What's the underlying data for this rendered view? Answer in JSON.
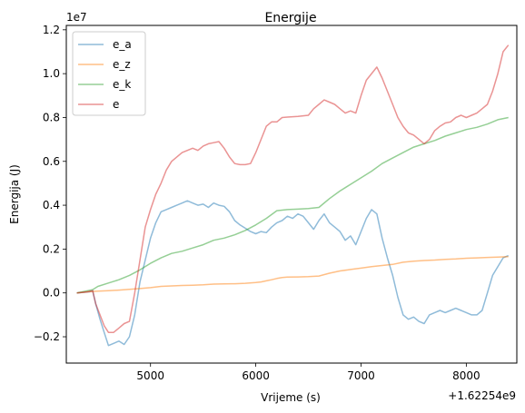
{
  "chart_data": {
    "type": "line",
    "title": "Energije",
    "xlabel": "Vrijeme (s)",
    "ylabel": "Energija (J)",
    "x_offset_label": "+1.62254e9",
    "y_scale_label": "1e7",
    "xlim": [
      4200,
      8480
    ],
    "ylim": [
      -0.32,
      1.22
    ],
    "x_ticks": [
      5000,
      6000,
      7000,
      8000
    ],
    "x_tick_labels": [
      "5000",
      "6000",
      "7000",
      "8000"
    ],
    "y_ticks": [
      -0.2,
      0.0,
      0.2,
      0.4,
      0.6,
      0.8,
      1.0,
      1.2
    ],
    "y_tick_labels": [
      "−0.2",
      "0.0",
      "0.2",
      "0.4",
      "0.6",
      "0.8",
      "1.0",
      "1.2"
    ],
    "legend_position": "upper-left",
    "grid": false,
    "series": [
      {
        "name": "e_a",
        "color": "#1f77b4",
        "points": [
          [
            4300,
            0.0
          ],
          [
            4420,
            0.005
          ],
          [
            4450,
            0.01
          ],
          [
            4480,
            -0.05
          ],
          [
            4520,
            -0.12
          ],
          [
            4560,
            -0.18
          ],
          [
            4600,
            -0.24
          ],
          [
            4650,
            -0.23
          ],
          [
            4700,
            -0.22
          ],
          [
            4750,
            -0.235
          ],
          [
            4800,
            -0.2
          ],
          [
            4850,
            -0.1
          ],
          [
            4900,
            0.05
          ],
          [
            4950,
            0.15
          ],
          [
            5000,
            0.25
          ],
          [
            5050,
            0.32
          ],
          [
            5100,
            0.37
          ],
          [
            5150,
            0.38
          ],
          [
            5200,
            0.39
          ],
          [
            5250,
            0.4
          ],
          [
            5300,
            0.41
          ],
          [
            5350,
            0.42
          ],
          [
            5400,
            0.41
          ],
          [
            5450,
            0.4
          ],
          [
            5500,
            0.405
          ],
          [
            5550,
            0.39
          ],
          [
            5600,
            0.41
          ],
          [
            5650,
            0.4
          ],
          [
            5700,
            0.395
          ],
          [
            5750,
            0.37
          ],
          [
            5800,
            0.33
          ],
          [
            5850,
            0.31
          ],
          [
            5900,
            0.295
          ],
          [
            5950,
            0.28
          ],
          [
            6000,
            0.27
          ],
          [
            6050,
            0.28
          ],
          [
            6100,
            0.275
          ],
          [
            6150,
            0.3
          ],
          [
            6200,
            0.32
          ],
          [
            6250,
            0.33
          ],
          [
            6300,
            0.35
          ],
          [
            6350,
            0.34
          ],
          [
            6400,
            0.36
          ],
          [
            6450,
            0.35
          ],
          [
            6500,
            0.32
          ],
          [
            6550,
            0.29
          ],
          [
            6600,
            0.33
          ],
          [
            6650,
            0.36
          ],
          [
            6700,
            0.32
          ],
          [
            6750,
            0.3
          ],
          [
            6800,
            0.28
          ],
          [
            6850,
            0.24
          ],
          [
            6900,
            0.26
          ],
          [
            6950,
            0.22
          ],
          [
            7000,
            0.28
          ],
          [
            7050,
            0.34
          ],
          [
            7100,
            0.38
          ],
          [
            7150,
            0.36
          ],
          [
            7200,
            0.25
          ],
          [
            7250,
            0.16
          ],
          [
            7300,
            0.08
          ],
          [
            7350,
            -0.02
          ],
          [
            7400,
            -0.1
          ],
          [
            7450,
            -0.12
          ],
          [
            7500,
            -0.11
          ],
          [
            7550,
            -0.13
          ],
          [
            7600,
            -0.14
          ],
          [
            7650,
            -0.1
          ],
          [
            7700,
            -0.09
          ],
          [
            7750,
            -0.08
          ],
          [
            7800,
            -0.09
          ],
          [
            7850,
            -0.08
          ],
          [
            7900,
            -0.07
          ],
          [
            7950,
            -0.08
          ],
          [
            8000,
            -0.09
          ],
          [
            8050,
            -0.1
          ],
          [
            8100,
            -0.1
          ],
          [
            8150,
            -0.08
          ],
          [
            8200,
            0.0
          ],
          [
            8250,
            0.08
          ],
          [
            8300,
            0.12
          ],
          [
            8350,
            0.16
          ],
          [
            8400,
            0.17
          ]
        ]
      },
      {
        "name": "e_z",
        "color": "#ff7f0e",
        "points": [
          [
            4300,
            0.0
          ],
          [
            4400,
            0.005
          ],
          [
            4500,
            0.008
          ],
          [
            4600,
            0.01
          ],
          [
            4700,
            0.013
          ],
          [
            4800,
            0.016
          ],
          [
            4900,
            0.02
          ],
          [
            5000,
            0.024
          ],
          [
            5100,
            0.03
          ],
          [
            5200,
            0.032
          ],
          [
            5300,
            0.034
          ],
          [
            5400,
            0.035
          ],
          [
            5500,
            0.037
          ],
          [
            5600,
            0.04
          ],
          [
            5700,
            0.041
          ],
          [
            5800,
            0.042
          ],
          [
            5900,
            0.044
          ],
          [
            6000,
            0.047
          ],
          [
            6050,
            0.05
          ],
          [
            6100,
            0.055
          ],
          [
            6150,
            0.06
          ],
          [
            6200,
            0.066
          ],
          [
            6250,
            0.07
          ],
          [
            6300,
            0.072
          ],
          [
            6400,
            0.073
          ],
          [
            6500,
            0.074
          ],
          [
            6600,
            0.077
          ],
          [
            6700,
            0.09
          ],
          [
            6800,
            0.1
          ],
          [
            6900,
            0.107
          ],
          [
            7000,
            0.113
          ],
          [
            7100,
            0.12
          ],
          [
            7200,
            0.125
          ],
          [
            7300,
            0.13
          ],
          [
            7400,
            0.14
          ],
          [
            7500,
            0.145
          ],
          [
            7600,
            0.148
          ],
          [
            7700,
            0.15
          ],
          [
            7800,
            0.153
          ],
          [
            7900,
            0.155
          ],
          [
            8000,
            0.158
          ],
          [
            8100,
            0.16
          ],
          [
            8200,
            0.162
          ],
          [
            8300,
            0.163
          ],
          [
            8400,
            0.165
          ]
        ]
      },
      {
        "name": "e_k",
        "color": "#2ca02c",
        "points": [
          [
            4300,
            0.0
          ],
          [
            4400,
            0.01
          ],
          [
            4450,
            0.015
          ],
          [
            4500,
            0.03
          ],
          [
            4600,
            0.045
          ],
          [
            4700,
            0.06
          ],
          [
            4800,
            0.08
          ],
          [
            4900,
            0.105
          ],
          [
            5000,
            0.135
          ],
          [
            5100,
            0.16
          ],
          [
            5200,
            0.18
          ],
          [
            5300,
            0.19
          ],
          [
            5400,
            0.205
          ],
          [
            5500,
            0.22
          ],
          [
            5600,
            0.24
          ],
          [
            5700,
            0.25
          ],
          [
            5800,
            0.265
          ],
          [
            5900,
            0.285
          ],
          [
            6000,
            0.31
          ],
          [
            6100,
            0.34
          ],
          [
            6200,
            0.375
          ],
          [
            6300,
            0.38
          ],
          [
            6400,
            0.382
          ],
          [
            6500,
            0.385
          ],
          [
            6600,
            0.39
          ],
          [
            6700,
            0.43
          ],
          [
            6800,
            0.465
          ],
          [
            6900,
            0.495
          ],
          [
            7000,
            0.525
          ],
          [
            7100,
            0.555
          ],
          [
            7200,
            0.59
          ],
          [
            7300,
            0.615
          ],
          [
            7400,
            0.64
          ],
          [
            7500,
            0.665
          ],
          [
            7600,
            0.68
          ],
          [
            7700,
            0.695
          ],
          [
            7800,
            0.715
          ],
          [
            7900,
            0.73
          ],
          [
            8000,
            0.745
          ],
          [
            8100,
            0.755
          ],
          [
            8200,
            0.77
          ],
          [
            8300,
            0.79
          ],
          [
            8400,
            0.8
          ]
        ]
      },
      {
        "name": "e",
        "color": "#d62728",
        "points": [
          [
            4300,
            0.0
          ],
          [
            4400,
            0.005
          ],
          [
            4450,
            0.01
          ],
          [
            4480,
            -0.05
          ],
          [
            4520,
            -0.1
          ],
          [
            4560,
            -0.15
          ],
          [
            4600,
            -0.18
          ],
          [
            4650,
            -0.18
          ],
          [
            4700,
            -0.16
          ],
          [
            4750,
            -0.14
          ],
          [
            4800,
            -0.13
          ],
          [
            4850,
            0.0
          ],
          [
            4900,
            0.15
          ],
          [
            4950,
            0.3
          ],
          [
            5000,
            0.38
          ],
          [
            5050,
            0.45
          ],
          [
            5100,
            0.5
          ],
          [
            5150,
            0.56
          ],
          [
            5200,
            0.6
          ],
          [
            5250,
            0.62
          ],
          [
            5300,
            0.64
          ],
          [
            5350,
            0.65
          ],
          [
            5400,
            0.66
          ],
          [
            5450,
            0.65
          ],
          [
            5500,
            0.67
          ],
          [
            5550,
            0.68
          ],
          [
            5600,
            0.685
          ],
          [
            5650,
            0.69
          ],
          [
            5700,
            0.66
          ],
          [
            5750,
            0.62
          ],
          [
            5800,
            0.59
          ],
          [
            5850,
            0.585
          ],
          [
            5900,
            0.585
          ],
          [
            5950,
            0.59
          ],
          [
            6000,
            0.64
          ],
          [
            6050,
            0.7
          ],
          [
            6100,
            0.76
          ],
          [
            6150,
            0.78
          ],
          [
            6200,
            0.78
          ],
          [
            6250,
            0.8
          ],
          [
            6300,
            0.802
          ],
          [
            6400,
            0.805
          ],
          [
            6500,
            0.81
          ],
          [
            6550,
            0.84
          ],
          [
            6600,
            0.86
          ],
          [
            6650,
            0.88
          ],
          [
            6700,
            0.87
          ],
          [
            6750,
            0.86
          ],
          [
            6800,
            0.84
          ],
          [
            6850,
            0.82
          ],
          [
            6900,
            0.83
          ],
          [
            6950,
            0.82
          ],
          [
            7000,
            0.9
          ],
          [
            7050,
            0.97
          ],
          [
            7100,
            1.0
          ],
          [
            7150,
            1.03
          ],
          [
            7200,
            0.98
          ],
          [
            7250,
            0.92
          ],
          [
            7300,
            0.86
          ],
          [
            7350,
            0.8
          ],
          [
            7400,
            0.76
          ],
          [
            7450,
            0.73
          ],
          [
            7500,
            0.72
          ],
          [
            7550,
            0.7
          ],
          [
            7600,
            0.68
          ],
          [
            7650,
            0.7
          ],
          [
            7700,
            0.74
          ],
          [
            7750,
            0.76
          ],
          [
            7800,
            0.775
          ],
          [
            7850,
            0.78
          ],
          [
            7900,
            0.8
          ],
          [
            7950,
            0.81
          ],
          [
            8000,
            0.8
          ],
          [
            8050,
            0.81
          ],
          [
            8100,
            0.82
          ],
          [
            8150,
            0.84
          ],
          [
            8200,
            0.86
          ],
          [
            8250,
            0.92
          ],
          [
            8300,
            1.0
          ],
          [
            8350,
            1.1
          ],
          [
            8400,
            1.13
          ]
        ]
      }
    ]
  }
}
